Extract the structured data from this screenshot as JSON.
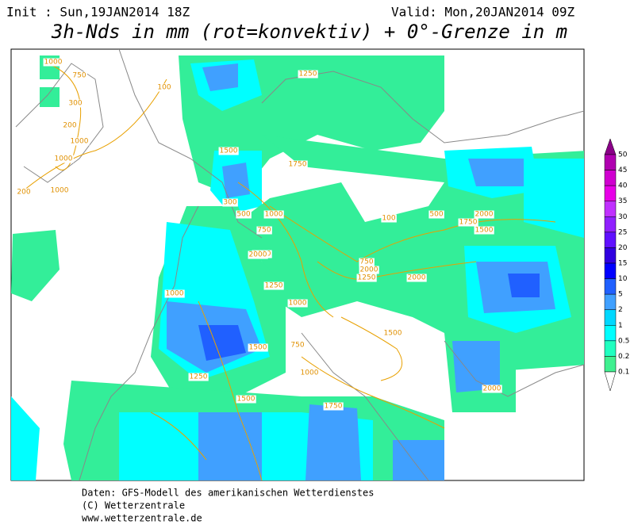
{
  "header": {
    "init": "Init : Sun,19JAN2014 18Z",
    "valid": "Valid: Mon,20JAN2014 09Z",
    "title": "3h-Nds in mm (rot=konvektiv) + 0°-Grenze in m"
  },
  "legend": {
    "levels": [
      "50",
      "45",
      "40",
      "35",
      "30",
      "25",
      "20",
      "15",
      "10",
      "5",
      "2",
      "1",
      "0.5",
      "0.2",
      "0.1"
    ],
    "colors": [
      "#8a0088",
      "#b000b0",
      "#d000d0",
      "#e800e8",
      "#c030ff",
      "#9020ff",
      "#6010ff",
      "#3000e0",
      "#0000ff",
      "#2060ff",
      "#40a0ff",
      "#00d8ff",
      "#00ffff",
      "#20ffc0",
      "#40f090"
    ]
  },
  "map": {
    "contour_labels": [
      "1000",
      "750",
      "300",
      "200",
      "1000",
      "1000",
      "1000",
      "200",
      "1250",
      "100",
      "1500",
      "1750",
      "300",
      "500",
      "1000",
      "750",
      "2000",
      "1250",
      "1000",
      "750",
      "1000",
      "1500",
      "2000",
      "750",
      "2000",
      "1250",
      "100",
      "500",
      "1500",
      "1750",
      "2000",
      "1000",
      "1250",
      "1500",
      "1750",
      "1500",
      "2000",
      "2000"
    ]
  },
  "footer": {
    "source": "Daten: GFS-Modell des amerikanischen Wetterdienstes",
    "copyright": "(C) Wetterzentrale",
    "url": "www.wetterzentrale.de"
  }
}
